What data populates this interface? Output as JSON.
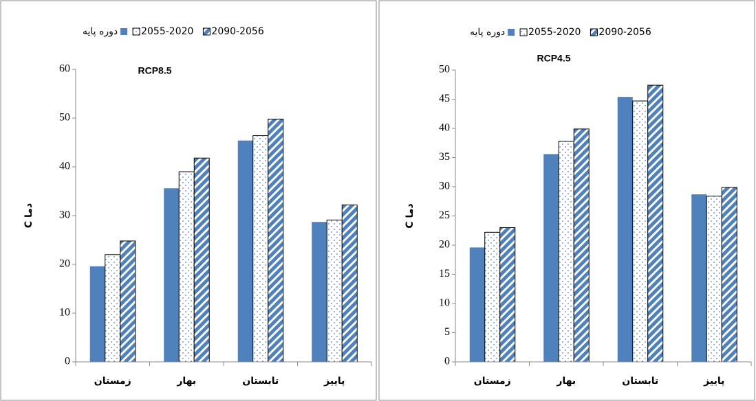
{
  "chart_data": [
    {
      "type": "bar",
      "title": "RCP8.5",
      "y_label": "C دما",
      "categories": [
        "زمستان",
        "بهار",
        "تابستان",
        "پاییز"
      ],
      "series": [
        {
          "name": "دوره پایه",
          "color": "#4f81bd",
          "pattern": "solid",
          "values": [
            19.6,
            35.6,
            45.4,
            28.7
          ]
        },
        {
          "name": "2055-2020",
          "color": "#ffffff",
          "pattern": "dots",
          "values": [
            22,
            39,
            46.4,
            29.1
          ]
        },
        {
          "name": "2090-2056",
          "color": "#4f81bd",
          "pattern": "stripes",
          "values": [
            24.8,
            41.8,
            49.8,
            32.2
          ]
        }
      ],
      "ylim": [
        0,
        60
      ],
      "yticks": [
        0,
        10,
        20,
        30,
        40,
        50,
        60
      ],
      "grid": false
    },
    {
      "type": "bar",
      "title": "RCP4.5",
      "y_label": "C دما",
      "categories": [
        "زمستان",
        "بهار",
        "تابستان",
        "پاییز"
      ],
      "series": [
        {
          "name": "دوره پایه",
          "color": "#4f81bd",
          "pattern": "solid",
          "values": [
            19.6,
            35.6,
            45.4,
            28.7
          ]
        },
        {
          "name": "2055-2020",
          "color": "#ffffff",
          "pattern": "dots",
          "values": [
            22.2,
            37.8,
            44.7,
            28.4
          ]
        },
        {
          "name": "2090-2056",
          "color": "#4f81bd",
          "pattern": "stripes",
          "values": [
            23,
            39.9,
            47.4,
            29.9
          ]
        }
      ],
      "ylim": [
        0,
        50
      ],
      "yticks": [
        0,
        5,
        10,
        15,
        20,
        25,
        30,
        35,
        40,
        45,
        50
      ],
      "grid": false
    }
  ]
}
